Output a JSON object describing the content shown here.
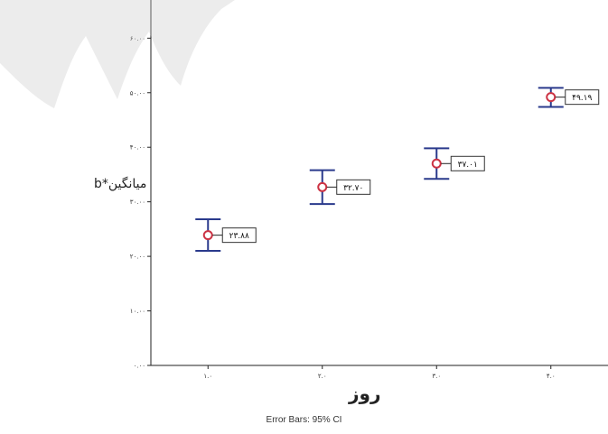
{
  "chart_data": {
    "type": "scatter",
    "xlabel": "روز",
    "ylabel": "میانگین*b",
    "footnote": "Error Bars: 95% CI",
    "x_ticks": [
      "۱.۰",
      "۲.۰",
      "۳.۰",
      "۴.۰"
    ],
    "y_ticks": [
      "۰.۰۰",
      "۱۰.۰۰",
      "۲۰.۰۰",
      "۳۰.۰۰",
      "۴۰.۰۰",
      "۵۰.۰۰",
      "۶۰.۰۰"
    ],
    "xlim": [
      0.5,
      4.5
    ],
    "ylim": [
      0,
      67
    ],
    "grid": false,
    "points": [
      {
        "x": 1,
        "y": 23.88,
        "ci_low": 21.0,
        "ci_high": 26.8,
        "label": "۲۳.۸۸"
      },
      {
        "x": 2,
        "y": 32.7,
        "ci_low": 29.6,
        "ci_high": 35.8,
        "label": "۳۲.۷۰"
      },
      {
        "x": 3,
        "y": 37.01,
        "ci_low": 34.2,
        "ci_high": 39.8,
        "label": "۳۷.۰۱"
      },
      {
        "x": 4,
        "y": 49.19,
        "ci_low": 47.4,
        "ci_high": 50.9,
        "label": "۴۹.۱۹"
      }
    ],
    "colors": {
      "marker": "#cc3344",
      "error_bar": "#2a3a8c",
      "axis": "#222222"
    }
  }
}
